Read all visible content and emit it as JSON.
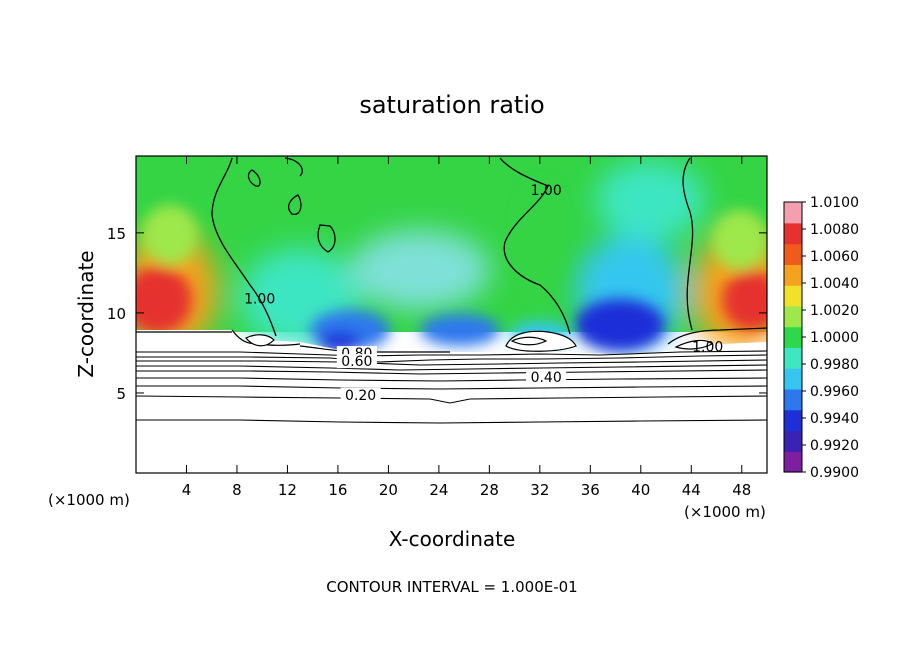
{
  "chart_data": {
    "type": "heatmap",
    "title": "saturation ratio",
    "xlabel": "X-coordinate",
    "ylabel": "Z-coordinate",
    "x_unit": "(×1000 m)",
    "y_unit": "(×1000 m)",
    "xlim": [
      0,
      50
    ],
    "ylim": [
      0,
      19.8
    ],
    "x_ticks": [
      4,
      8,
      12,
      16,
      20,
      24,
      28,
      32,
      36,
      40,
      44,
      48
    ],
    "y_ticks": [
      5,
      10,
      15
    ],
    "colorbar": {
      "range": [
        0.99,
        1.01
      ],
      "tick_values": [
        0.99,
        0.992,
        0.994,
        0.996,
        0.998,
        1.0,
        1.002,
        1.004,
        1.006,
        1.008,
        1.01
      ],
      "tick_labels": [
        "0.9900",
        "0.9920",
        "0.9940",
        "0.9960",
        "0.9980",
        "1.0000",
        "1.0020",
        "1.0040",
        "1.0060",
        "1.0080",
        "1.0100"
      ],
      "colors": [
        "#7d1fa0",
        "#3a22b4",
        "#1f2fd8",
        "#2d78ee",
        "#36c6f0",
        "#3ee6c2",
        "#2fd84b",
        "#9ee84c",
        "#f0e22b",
        "#f5a21f",
        "#f05a1b",
        "#e5322e",
        "#f39fb0"
      ]
    },
    "contour_labels": [
      {
        "text": "1.00",
        "x": 32.5,
        "z": 17.5
      },
      {
        "text": "1.00",
        "x": 9.8,
        "z": 10.7
      },
      {
        "text": "1.00",
        "x": 45.3,
        "z": 7.7
      },
      {
        "text": "0.80",
        "x": 17.5,
        "z": 7.3
      },
      {
        "text": "0.60",
        "x": 17.5,
        "z": 6.8
      },
      {
        "text": "0.40",
        "x": 32.5,
        "z": 5.8
      },
      {
        "text": "0.20",
        "x": 17.8,
        "z": 4.7
      }
    ],
    "contour_interval_text": "CONTOUR INTERVAL = 1.000E-01"
  }
}
